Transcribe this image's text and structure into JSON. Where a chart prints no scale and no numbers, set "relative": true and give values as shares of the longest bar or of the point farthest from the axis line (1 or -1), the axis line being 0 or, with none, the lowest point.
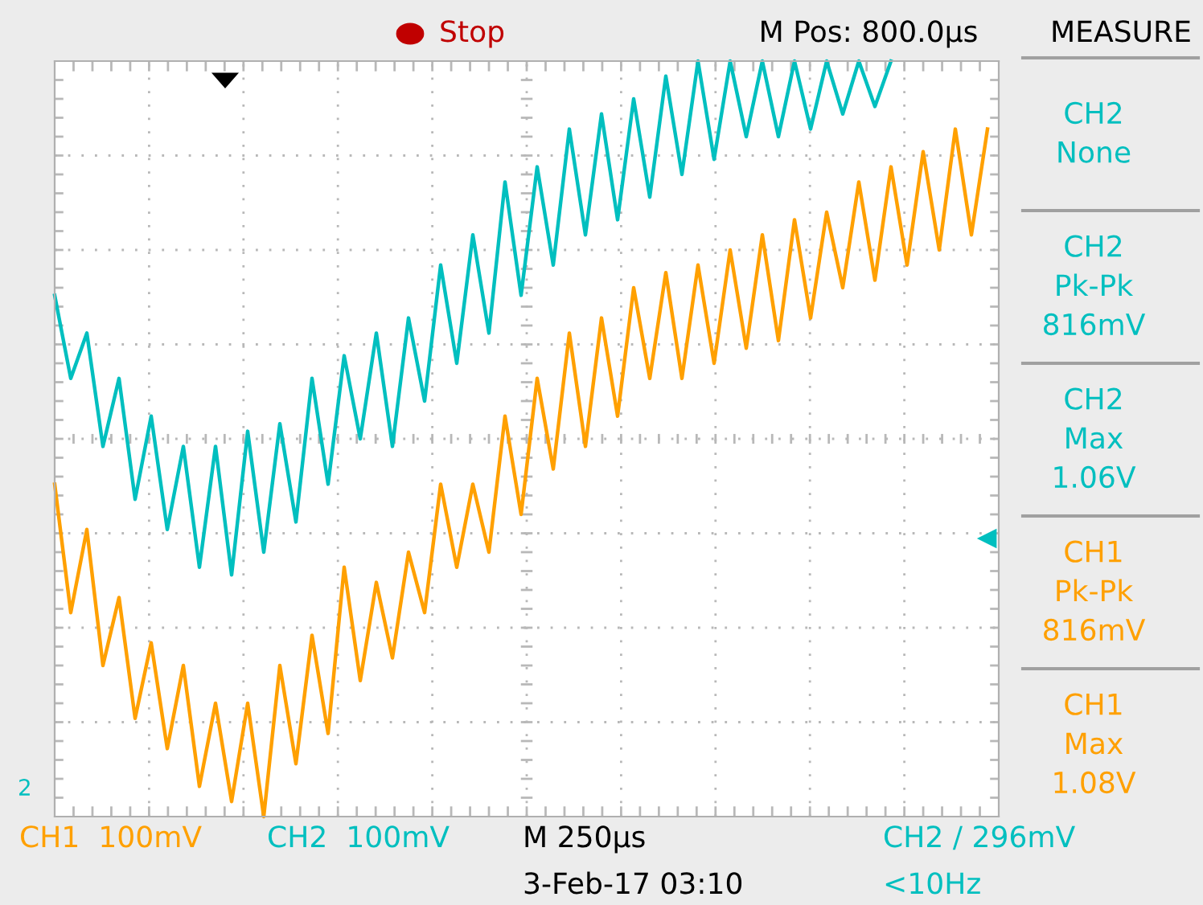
{
  "chart_data": {
    "type": "line",
    "relative": true,
    "grid": true,
    "legend": false,
    "marker": "none",
    "line_style": "solid",
    "categories": [
      null,
      null,
      null,
      null,
      null,
      null,
      null,
      null,
      null,
      null,
      null,
      null,
      null,
      null,
      null,
      null,
      null,
      null,
      null,
      null,
      null,
      null,
      null,
      null,
      null,
      null,
      null,
      null,
      null,
      null,
      null,
      null,
      null,
      null,
      null,
      null,
      null,
      null,
      null,
      null,
      null,
      null,
      null,
      null,
      null,
      null,
      null,
      null,
      null,
      null,
      null,
      null,
      null,
      null,
      null,
      null,
      null,
      null,
      null
    ],
    "series": [
      {
        "color": "#00bfbf",
        "values": [
          0.69,
          0.58,
          0.64,
          0.49,
          0.58,
          0.42,
          0.53,
          0.38,
          0.49,
          0.33,
          0.49,
          0.32,
          0.51,
          0.35,
          0.52,
          0.39,
          0.58,
          0.44,
          0.61,
          0.5,
          0.64,
          0.49,
          0.66,
          0.55,
          0.73,
          0.6,
          0.77,
          0.64,
          0.84,
          0.69,
          0.86,
          0.73,
          0.91,
          0.77,
          0.93,
          0.79,
          0.95,
          0.82,
          0.98,
          0.85,
          1.0,
          0.87,
          1.0,
          0.9,
          1.0,
          0.9,
          1.0,
          0.91,
          1.0,
          0.93,
          1.0,
          0.94,
          1.0,
          null,
          null,
          null,
          null,
          null,
          null
        ]
      },
      {
        "color": "#ffa000",
        "values": [
          0.44,
          0.27,
          0.38,
          0.2,
          0.29,
          0.13,
          0.23,
          0.09,
          0.2,
          0.04,
          0.15,
          0.02,
          0.15,
          0.0,
          0.2,
          0.07,
          0.24,
          0.11,
          0.33,
          0.18,
          0.31,
          0.21,
          0.35,
          0.27,
          0.44,
          0.33,
          0.44,
          0.35,
          0.53,
          0.4,
          0.58,
          0.46,
          0.64,
          0.49,
          0.66,
          0.53,
          0.7,
          0.58,
          0.72,
          0.58,
          0.73,
          0.6,
          0.75,
          0.62,
          0.77,
          0.63,
          0.79,
          0.66,
          0.8,
          0.7,
          0.84,
          0.71,
          0.86,
          0.73,
          0.88,
          0.75,
          0.91,
          0.77,
          0.91
        ]
      }
    ],
    "annotations": [
      "Stop",
      "M Pos: 800.0µs",
      "MEASURE",
      "CH2\nNone",
      "CH2\nPk-Pk\n816mV",
      "CH2\nMax\n1.06V",
      "CH1\nPk-Pk\n816mV",
      "CH1\nMax\n1.08V",
      "CH1  100mV",
      "CH2  100mV",
      "M 250µs",
      "CH2 / 296mV",
      "3-Feb-17 03:10",
      "<10Hz",
      "2"
    ]
  }
}
